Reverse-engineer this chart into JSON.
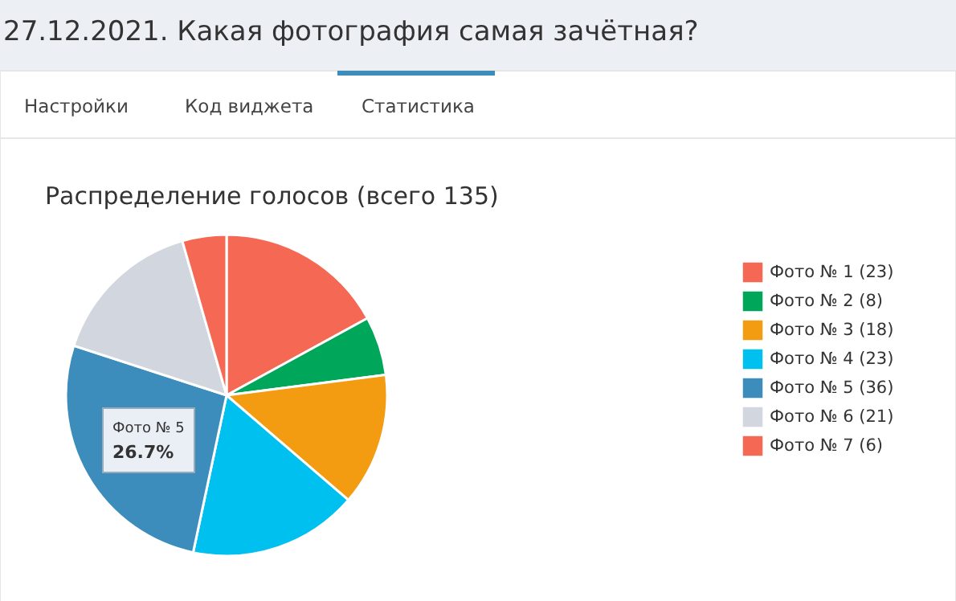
{
  "chart_data": {
    "type": "pie",
    "title": "27.12.2021. Какая фотография самая зачётная?",
    "subtitle": "Распределение голосов (всего 135)",
    "categories": [
      "Фото № 1",
      "Фото № 2",
      "Фото № 3",
      "Фото № 4",
      "Фото № 5",
      "Фото № 6",
      "Фото № 7"
    ],
    "values": [
      23,
      8,
      18,
      23,
      36,
      21,
      6
    ],
    "value_labels": [
      "(23)",
      "(8)",
      "(18)",
      "(23)",
      "(36)",
      "(21)",
      "(6)"
    ],
    "colors": [
      "#f56954",
      "#00a65a",
      "#f39c12",
      "#00c0ef",
      "#3c8dbc",
      "#d2d6de",
      "#f56954"
    ],
    "legend": "right",
    "annotations": [
      "Настройки",
      "Код виджета",
      "Статистика",
      "Фото № 5",
      "26.7%"
    ]
  }
}
